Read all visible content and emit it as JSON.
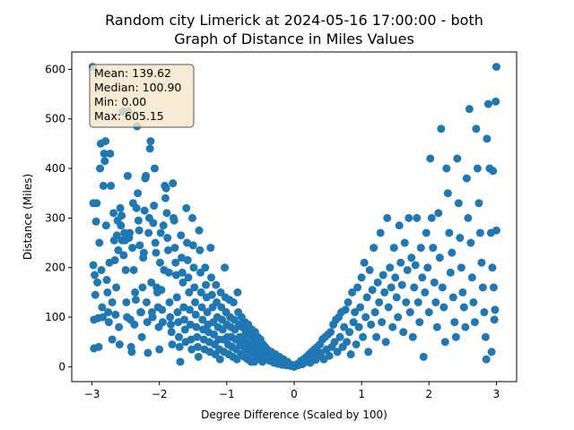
{
  "chart_data": {
    "type": "scatter",
    "title_line1": "Random city Limerick at 2024-05-16 17:00:00  - both",
    "title_line2": "Graph of Distance in Miles Values",
    "xlabel": "Degree Difference (Scaled by 100)",
    "ylabel": "Distance (Miles)",
    "xlim": [
      -3.3,
      3.3
    ],
    "ylim": [
      -30,
      635
    ],
    "xticks": [
      -3,
      -2,
      -1,
      0,
      1,
      2,
      3
    ],
    "yticks": [
      0,
      100,
      200,
      300,
      400,
      500,
      600
    ],
    "grid": false,
    "point_color": "#1f77b4",
    "stats_box": {
      "placement": "top-left",
      "background": "#f5e6c8",
      "lines": [
        "Mean: 139.62",
        "Median: 100.90",
        "Min: 0.00",
        "Max: 605.15"
      ]
    },
    "points": [
      [
        -2.99,
        605
      ],
      [
        -2.98,
        330
      ],
      [
        -2.98,
        205
      ],
      [
        -2.97,
        95
      ],
      [
        -2.97,
        37
      ],
      [
        -2.96,
        185
      ],
      [
        -2.95,
        145
      ],
      [
        -2.94,
        293
      ],
      [
        -2.93,
        330
      ],
      [
        -2.92,
        170
      ],
      [
        -2.91,
        98
      ],
      [
        -2.9,
        40
      ],
      [
        -2.89,
        250
      ],
      [
        -2.88,
        400
      ],
      [
        -2.87,
        450
      ],
      [
        -2.86,
        195
      ],
      [
        -2.85,
        120
      ],
      [
        -2.84,
        100
      ],
      [
        -2.83,
        365
      ],
      [
        -2.82,
        430
      ],
      [
        -2.81,
        415
      ],
      [
        -2.8,
        455
      ],
      [
        -2.79,
        285
      ],
      [
        -2.78,
        175
      ],
      [
        -2.77,
        150
      ],
      [
        -2.76,
        110
      ],
      [
        -2.75,
        90
      ],
      [
        -2.74,
        210
      ],
      [
        -2.73,
        430
      ],
      [
        -2.72,
        365
      ],
      [
        -2.7,
        130
      ],
      [
        -2.7,
        55
      ],
      [
        -2.68,
        310
      ],
      [
        -2.67,
        255
      ],
      [
        -2.66,
        215
      ],
      [
        -2.65,
        105
      ],
      [
        -2.64,
        160
      ],
      [
        -2.63,
        265
      ],
      [
        -2.62,
        295
      ],
      [
        -2.61,
        235
      ],
      [
        -2.6,
        80
      ],
      [
        -2.59,
        45
      ],
      [
        -2.58,
        320
      ],
      [
        -2.57,
        285
      ],
      [
        -2.56,
        305
      ],
      [
        -2.55,
        255
      ],
      [
        -2.54,
        515
      ],
      [
        -2.53,
        225
      ],
      [
        -2.52,
        270
      ],
      [
        -2.51,
        255
      ],
      [
        -2.5,
        195
      ],
      [
        -2.49,
        130
      ],
      [
        -2.48,
        100
      ],
      [
        -2.47,
        385
      ],
      [
        -2.46,
        515
      ],
      [
        -2.45,
        260
      ],
      [
        -2.44,
        270
      ],
      [
        -2.43,
        95
      ],
      [
        -2.42,
        40
      ],
      [
        -2.41,
        30
      ],
      [
        -2.4,
        240
      ],
      [
        -2.39,
        330
      ],
      [
        -2.38,
        195
      ],
      [
        -2.37,
        85
      ],
      [
        -2.36,
        150
      ],
      [
        -2.35,
        135
      ],
      [
        -2.34,
        320
      ],
      [
        -2.33,
        485
      ],
      [
        -2.32,
        350
      ],
      [
        -2.31,
        295
      ],
      [
        -2.3,
        275
      ],
      [
        -2.29,
        245
      ],
      [
        -2.28,
        110
      ],
      [
        -2.27,
        110
      ],
      [
        -2.26,
        60
      ],
      [
        -2.25,
        160
      ],
      [
        -2.24,
        220
      ],
      [
        -2.23,
        230
      ],
      [
        -2.22,
        315
      ],
      [
        -2.21,
        380
      ],
      [
        -2.2,
        385
      ],
      [
        -2.19,
        130
      ],
      [
        -2.18,
        90
      ],
      [
        -2.17,
        28
      ],
      [
        -2.16,
        270
      ],
      [
        -2.15,
        300
      ],
      [
        -2.14,
        440
      ],
      [
        -2.13,
        455
      ],
      [
        -2.12,
        170
      ],
      [
        -2.11,
        110
      ],
      [
        -2.1,
        100
      ],
      [
        -2.09,
        290
      ],
      [
        -2.08,
        325
      ],
      [
        -2.07,
        400
      ],
      [
        -2.06,
        250
      ],
      [
        -2.05,
        230
      ],
      [
        -2.04,
        160
      ],
      [
        -2.03,
        150
      ],
      [
        -2.02,
        120
      ],
      [
        -2.01,
        80
      ],
      [
        -2.0,
        35
      ],
      [
        -1.99,
        210
      ],
      [
        -1.98,
        270
      ],
      [
        -1.97,
        155
      ],
      [
        -1.96,
        115
      ],
      [
        -1.95,
        90
      ],
      [
        -1.94,
        285
      ],
      [
        -1.93,
        195
      ],
      [
        -1.92,
        365
      ],
      [
        -1.91,
        340
      ],
      [
        -1.9,
        360
      ],
      [
        -1.89,
        310
      ],
      [
        -1.88,
        260
      ],
      [
        -1.87,
        235
      ],
      [
        -1.86,
        190
      ],
      [
        -1.85,
        130
      ],
      [
        -1.84,
        100
      ],
      [
        -1.83,
        85
      ],
      [
        -1.82,
        70
      ],
      [
        -1.81,
        45
      ],
      [
        -1.8,
        370
      ],
      [
        -1.79,
        300
      ],
      [
        -1.78,
        295
      ],
      [
        -1.77,
        240
      ],
      [
        -1.76,
        210
      ],
      [
        -1.75,
        185
      ],
      [
        -1.74,
        140
      ],
      [
        -1.73,
        110
      ],
      [
        -1.72,
        90
      ],
      [
        -1.71,
        60
      ],
      [
        -1.7,
        40
      ],
      [
        -1.69,
        10
      ],
      [
        -1.68,
        265
      ],
      [
        -1.67,
        220
      ],
      [
        -1.66,
        190
      ],
      [
        -1.65,
        170
      ],
      [
        -1.64,
        120
      ],
      [
        -1.63,
        95
      ],
      [
        -1.62,
        75
      ],
      [
        -1.61,
        50
      ],
      [
        -1.6,
        320
      ],
      [
        -1.59,
        250
      ],
      [
        -1.58,
        215
      ],
      [
        -1.57,
        180
      ],
      [
        -1.56,
        150
      ],
      [
        -1.55,
        115
      ],
      [
        -1.54,
        85
      ],
      [
        -1.53,
        55
      ],
      [
        -1.52,
        35
      ],
      [
        -1.51,
        300
      ],
      [
        -1.5,
        245
      ],
      [
        -1.49,
        200
      ],
      [
        -1.48,
        160
      ],
      [
        -1.47,
        130
      ],
      [
        -1.46,
        105
      ],
      [
        -1.45,
        80
      ],
      [
        -1.44,
        60
      ],
      [
        -1.43,
        40
      ],
      [
        -1.42,
        20
      ],
      [
        -1.41,
        275
      ],
      [
        -1.4,
        235
      ],
      [
        -1.39,
        190
      ],
      [
        -1.38,
        150
      ],
      [
        -1.37,
        120
      ],
      [
        -1.36,
        95
      ],
      [
        -1.35,
        75
      ],
      [
        -1.34,
        55
      ],
      [
        -1.33,
        35
      ],
      [
        -1.32,
        200
      ],
      [
        -1.31,
        165
      ],
      [
        -1.3,
        140
      ],
      [
        -1.29,
        110
      ],
      [
        -1.28,
        85
      ],
      [
        -1.27,
        70
      ],
      [
        -1.26,
        50
      ],
      [
        -1.25,
        30
      ],
      [
        -1.24,
        240
      ],
      [
        -1.23,
        180
      ],
      [
        -1.22,
        145
      ],
      [
        -1.21,
        120
      ],
      [
        -1.2,
        90
      ],
      [
        -1.19,
        65
      ],
      [
        -1.18,
        45
      ],
      [
        -1.17,
        25
      ],
      [
        -1.16,
        165
      ],
      [
        -1.15,
        130
      ],
      [
        -1.14,
        100
      ],
      [
        -1.13,
        80
      ],
      [
        -1.12,
        55
      ],
      [
        -1.11,
        35
      ],
      [
        -1.1,
        15
      ],
      [
        -1.09,
        150
      ],
      [
        -1.08,
        120
      ],
      [
        -1.07,
        95
      ],
      [
        -1.06,
        75
      ],
      [
        -1.05,
        55
      ],
      [
        -1.04,
        30
      ],
      [
        -1.03,
        200
      ],
      [
        -1.02,
        140
      ],
      [
        -1.01,
        110
      ],
      [
        -1.0,
        85
      ],
      [
        -0.99,
        60
      ],
      [
        -0.98,
        45
      ],
      [
        -0.97,
        25
      ],
      [
        -0.96,
        135
      ],
      [
        -0.95,
        100
      ],
      [
        -0.94,
        80
      ],
      [
        -0.93,
        60
      ],
      [
        -0.92,
        40
      ],
      [
        -0.91,
        20
      ],
      [
        -0.9,
        130
      ],
      [
        -0.89,
        95
      ],
      [
        -0.88,
        75
      ],
      [
        -0.87,
        55
      ],
      [
        -0.86,
        35
      ],
      [
        -0.85,
        15
      ],
      [
        -0.84,
        150
      ],
      [
        -0.83,
        110
      ],
      [
        -0.82,
        85
      ],
      [
        -0.81,
        60
      ],
      [
        -0.8,
        45
      ],
      [
        -0.79,
        25
      ],
      [
        -0.78,
        100
      ],
      [
        -0.77,
        80
      ],
      [
        -0.76,
        60
      ],
      [
        -0.75,
        40
      ],
      [
        -0.74,
        20
      ],
      [
        -0.73,
        90
      ],
      [
        -0.72,
        70
      ],
      [
        -0.71,
        50
      ],
      [
        -0.7,
        35
      ],
      [
        -0.69,
        15
      ],
      [
        -0.68,
        85
      ],
      [
        -0.67,
        65
      ],
      [
        -0.66,
        45
      ],
      [
        -0.65,
        30
      ],
      [
        -0.64,
        10
      ],
      [
        -0.63,
        75
      ],
      [
        -0.62,
        60
      ],
      [
        -0.61,
        40
      ],
      [
        -0.6,
        25
      ],
      [
        -0.59,
        10
      ],
      [
        -0.58,
        70
      ],
      [
        -0.57,
        50
      ],
      [
        -0.56,
        35
      ],
      [
        -0.55,
        20
      ],
      [
        -0.54,
        60
      ],
      [
        -0.53,
        45
      ],
      [
        -0.52,
        30
      ],
      [
        -0.51,
        15
      ],
      [
        -0.5,
        55
      ],
      [
        -0.49,
        40
      ],
      [
        -0.48,
        25
      ],
      [
        -0.47,
        10
      ],
      [
        -0.46,
        45
      ],
      [
        -0.45,
        30
      ],
      [
        -0.44,
        20
      ],
      [
        -0.43,
        40
      ],
      [
        -0.42,
        25
      ],
      [
        -0.41,
        15
      ],
      [
        -0.4,
        35
      ],
      [
        -0.38,
        22
      ],
      [
        -0.36,
        12
      ],
      [
        -0.34,
        30
      ],
      [
        -0.32,
        18
      ],
      [
        -0.3,
        8
      ],
      [
        -0.28,
        25
      ],
      [
        -0.26,
        14
      ],
      [
        -0.24,
        6
      ],
      [
        -0.22,
        20
      ],
      [
        -0.2,
        10
      ],
      [
        -0.18,
        4
      ],
      [
        -0.16,
        15
      ],
      [
        -0.14,
        7
      ],
      [
        -0.12,
        3
      ],
      [
        -0.1,
        10
      ],
      [
        -0.08,
        5
      ],
      [
        -0.06,
        2
      ],
      [
        -0.04,
        4
      ],
      [
        -0.02,
        1
      ],
      [
        0.0,
        0
      ],
      [
        0.02,
        2
      ],
      [
        0.04,
        5
      ],
      [
        0.06,
        3
      ],
      [
        0.08,
        8
      ],
      [
        0.1,
        12
      ],
      [
        0.12,
        5
      ],
      [
        0.14,
        15
      ],
      [
        0.16,
        9
      ],
      [
        0.18,
        20
      ],
      [
        0.2,
        12
      ],
      [
        0.22,
        25
      ],
      [
        0.24,
        8
      ],
      [
        0.26,
        30
      ],
      [
        0.28,
        18
      ],
      [
        0.3,
        35
      ],
      [
        0.32,
        14
      ],
      [
        0.34,
        40
      ],
      [
        0.36,
        22
      ],
      [
        0.38,
        45
      ],
      [
        0.4,
        28
      ],
      [
        0.42,
        55
      ],
      [
        0.44,
        15
      ],
      [
        0.46,
        60
      ],
      [
        0.48,
        35
      ],
      [
        0.5,
        65
      ],
      [
        0.52,
        22
      ],
      [
        0.54,
        70
      ],
      [
        0.56,
        40
      ],
      [
        0.58,
        85
      ],
      [
        0.6,
        50
      ],
      [
        0.62,
        95
      ],
      [
        0.64,
        30
      ],
      [
        0.66,
        100
      ],
      [
        0.68,
        60
      ],
      [
        0.7,
        110
      ],
      [
        0.72,
        40
      ],
      [
        0.74,
        80
      ],
      [
        0.76,
        115
      ],
      [
        0.78,
        50
      ],
      [
        0.8,
        130
      ],
      [
        0.82,
        70
      ],
      [
        0.84,
        25
      ],
      [
        0.86,
        150
      ],
      [
        0.88,
        90
      ],
      [
        0.9,
        110
      ],
      [
        0.92,
        45
      ],
      [
        0.94,
        160
      ],
      [
        0.96,
        80
      ],
      [
        0.98,
        120
      ],
      [
        1.0,
        180
      ],
      [
        1.02,
        60
      ],
      [
        1.04,
        210
      ],
      [
        1.06,
        100
      ],
      [
        1.08,
        140
      ],
      [
        1.1,
        30
      ],
      [
        1.12,
        195
      ],
      [
        1.14,
        85
      ],
      [
        1.16,
        155
      ],
      [
        1.18,
        240
      ],
      [
        1.2,
        110
      ],
      [
        1.22,
        60
      ],
      [
        1.24,
        170
      ],
      [
        1.26,
        130
      ],
      [
        1.28,
        270
      ],
      [
        1.3,
        90
      ],
      [
        1.32,
        185
      ],
      [
        1.34,
        150
      ],
      [
        1.36,
        50
      ],
      [
        1.38,
        300
      ],
      [
        1.4,
        120
      ],
      [
        1.42,
        200
      ],
      [
        1.44,
        160
      ],
      [
        1.46,
        80
      ],
      [
        1.48,
        240
      ],
      [
        1.5,
        180
      ],
      [
        1.52,
        140
      ],
      [
        1.54,
        100
      ],
      [
        1.56,
        285
      ],
      [
        1.58,
        210
      ],
      [
        1.6,
        165
      ],
      [
        1.62,
        70
      ],
      [
        1.64,
        250
      ],
      [
        1.66,
        130
      ],
      [
        1.68,
        195
      ],
      [
        1.7,
        300
      ],
      [
        1.72,
        110
      ],
      [
        1.74,
        220
      ],
      [
        1.76,
        60
      ],
      [
        1.78,
        160
      ],
      [
        1.8,
        205
      ],
      [
        1.82,
        300
      ],
      [
        1.84,
        130
      ],
      [
        1.86,
        90
      ],
      [
        1.88,
        240
      ],
      [
        1.9,
        180
      ],
      [
        1.92,
        20
      ],
      [
        1.94,
        150
      ],
      [
        1.96,
        270
      ],
      [
        1.98,
        200
      ],
      [
        2.0,
        110
      ],
      [
        2.02,
        420
      ],
      [
        2.04,
        300
      ],
      [
        2.06,
        240
      ],
      [
        2.08,
        170
      ],
      [
        2.1,
        130
      ],
      [
        2.12,
        80
      ],
      [
        2.14,
        310
      ],
      [
        2.16,
        220
      ],
      [
        2.18,
        480
      ],
      [
        2.2,
        160
      ],
      [
        2.22,
        120
      ],
      [
        2.24,
        50
      ],
      [
        2.26,
        400
      ],
      [
        2.28,
        350
      ],
      [
        2.3,
        270
      ],
      [
        2.32,
        190
      ],
      [
        2.34,
        230
      ],
      [
        2.36,
        140
      ],
      [
        2.38,
        90
      ],
      [
        2.4,
        60
      ],
      [
        2.42,
        420
      ],
      [
        2.44,
        330
      ],
      [
        2.46,
        260
      ],
      [
        2.48,
        200
      ],
      [
        2.5,
        150
      ],
      [
        2.52,
        120
      ],
      [
        2.54,
        80
      ],
      [
        2.56,
        380
      ],
      [
        2.58,
        300
      ],
      [
        2.6,
        520
      ],
      [
        2.62,
        250
      ],
      [
        2.64,
        180
      ],
      [
        2.66,
        130
      ],
      [
        2.68,
        90
      ],
      [
        2.7,
        480
      ],
      [
        2.72,
        400
      ],
      [
        2.74,
        330
      ],
      [
        2.76,
        270
      ],
      [
        2.78,
        210
      ],
      [
        2.8,
        160
      ],
      [
        2.82,
        110
      ],
      [
        2.84,
        60
      ],
      [
        2.86,
        460
      ],
      [
        2.88,
        530
      ],
      [
        2.9,
        400
      ],
      [
        2.92,
        270
      ],
      [
        2.94,
        200
      ],
      [
        2.96,
        160
      ],
      [
        2.98,
        115
      ],
      [
        3.0,
        275
      ],
      [
        3.0,
        605
      ],
      [
        2.99,
        535
      ],
      [
        2.95,
        395
      ],
      [
        2.85,
        15
      ],
      [
        2.93,
        30
      ],
      [
        2.97,
        95
      ]
    ]
  }
}
